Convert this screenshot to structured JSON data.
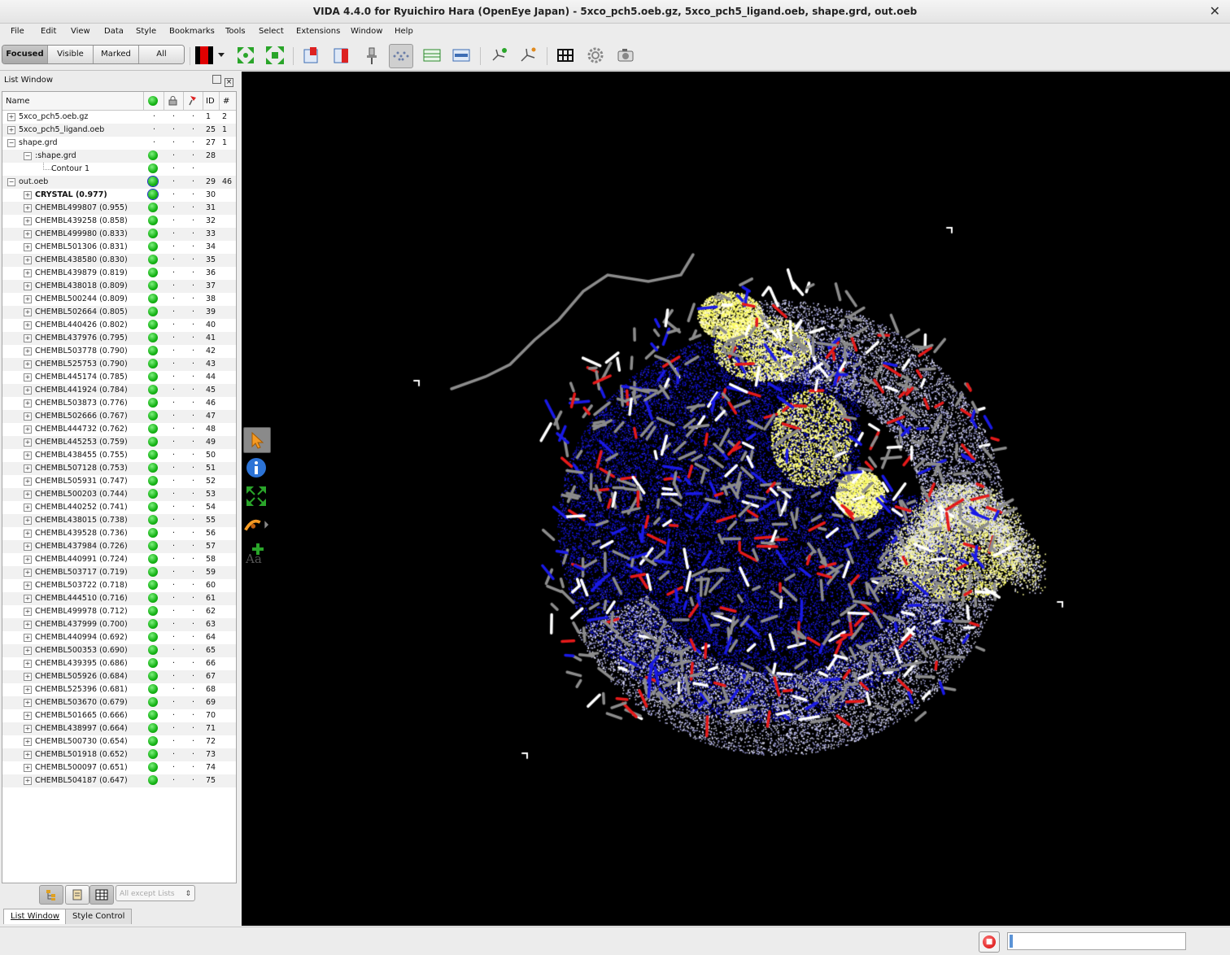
{
  "window": {
    "title": "VIDA 4.4.0 for Ryuichiro Hara (OpenEye Japan) - 5xco_pch5.oeb.gz, 5xco_pch5_ligand.oeb, shape.grd, out.oeb",
    "close_glyph": "✕"
  },
  "menu": [
    "File",
    "Edit",
    "View",
    "Data",
    "Style",
    "Bookmarks",
    "Tools",
    "Select",
    "Extensions",
    "Window",
    "Help"
  ],
  "toolbar": {
    "scope_buttons": [
      "Focused",
      "Visible",
      "Marked",
      "All"
    ],
    "active_scope": "Focused"
  },
  "list_window": {
    "title": "List Window",
    "columns": {
      "name": "Name",
      "id": "ID",
      "count": "#"
    },
    "rows": [
      {
        "name": "5xco_pch5.oeb.gz",
        "level": 0,
        "expander": "+",
        "visible": false,
        "id": "1",
        "count": "2"
      },
      {
        "name": "5xco_pch5_ligand.oeb",
        "level": 0,
        "expander": "+",
        "visible": false,
        "id": "25",
        "count": "1"
      },
      {
        "name": "shape.grd",
        "level": 0,
        "expander": "−",
        "visible": false,
        "id": "27",
        "count": "1"
      },
      {
        "name": ":shape.grd",
        "level": 1,
        "expander": "−",
        "visible": true,
        "id": "28",
        "count": ""
      },
      {
        "name": "Contour 1",
        "level": 2,
        "expander": "",
        "visible": true,
        "id": "",
        "count": ""
      },
      {
        "name": "out.oeb",
        "level": 0,
        "expander": "−",
        "visible": true,
        "selected": true,
        "id": "29",
        "count": "46"
      },
      {
        "name": "CRYSTAL (0.977)",
        "level": 1,
        "expander": "+",
        "visible": true,
        "selected": true,
        "bold": true,
        "id": "30",
        "count": ""
      },
      {
        "name": "CHEMBL499807 (0.955)",
        "level": 1,
        "expander": "+",
        "visible": true,
        "id": "31",
        "count": ""
      },
      {
        "name": "CHEMBL439258 (0.858)",
        "level": 1,
        "expander": "+",
        "visible": true,
        "id": "32",
        "count": ""
      },
      {
        "name": "CHEMBL499980 (0.833)",
        "level": 1,
        "expander": "+",
        "visible": true,
        "id": "33",
        "count": ""
      },
      {
        "name": "CHEMBL501306 (0.831)",
        "level": 1,
        "expander": "+",
        "visible": true,
        "id": "34",
        "count": ""
      },
      {
        "name": "CHEMBL438580 (0.830)",
        "level": 1,
        "expander": "+",
        "visible": true,
        "id": "35",
        "count": ""
      },
      {
        "name": "CHEMBL439879 (0.819)",
        "level": 1,
        "expander": "+",
        "visible": true,
        "id": "36",
        "count": ""
      },
      {
        "name": "CHEMBL438018 (0.809)",
        "level": 1,
        "expander": "+",
        "visible": true,
        "id": "37",
        "count": ""
      },
      {
        "name": "CHEMBL500244 (0.809)",
        "level": 1,
        "expander": "+",
        "visible": true,
        "id": "38",
        "count": ""
      },
      {
        "name": "CHEMBL502664 (0.805)",
        "level": 1,
        "expander": "+",
        "visible": true,
        "id": "39",
        "count": ""
      },
      {
        "name": "CHEMBL440426 (0.802)",
        "level": 1,
        "expander": "+",
        "visible": true,
        "id": "40",
        "count": ""
      },
      {
        "name": "CHEMBL437976 (0.795)",
        "level": 1,
        "expander": "+",
        "visible": true,
        "id": "41",
        "count": ""
      },
      {
        "name": "CHEMBL503778 (0.790)",
        "level": 1,
        "expander": "+",
        "visible": true,
        "id": "42",
        "count": ""
      },
      {
        "name": "CHEMBL525753 (0.790)",
        "level": 1,
        "expander": "+",
        "visible": true,
        "id": "43",
        "count": ""
      },
      {
        "name": "CHEMBL445174 (0.785)",
        "level": 1,
        "expander": "+",
        "visible": true,
        "id": "44",
        "count": ""
      },
      {
        "name": "CHEMBL441924 (0.784)",
        "level": 1,
        "expander": "+",
        "visible": true,
        "id": "45",
        "count": ""
      },
      {
        "name": "CHEMBL503873 (0.776)",
        "level": 1,
        "expander": "+",
        "visible": true,
        "id": "46",
        "count": ""
      },
      {
        "name": "CHEMBL502666 (0.767)",
        "level": 1,
        "expander": "+",
        "visible": true,
        "id": "47",
        "count": ""
      },
      {
        "name": "CHEMBL444732 (0.762)",
        "level": 1,
        "expander": "+",
        "visible": true,
        "id": "48",
        "count": ""
      },
      {
        "name": "CHEMBL445253 (0.759)",
        "level": 1,
        "expander": "+",
        "visible": true,
        "id": "49",
        "count": ""
      },
      {
        "name": "CHEMBL438455 (0.755)",
        "level": 1,
        "expander": "+",
        "visible": true,
        "id": "50",
        "count": ""
      },
      {
        "name": "CHEMBL507128 (0.753)",
        "level": 1,
        "expander": "+",
        "visible": true,
        "id": "51",
        "count": ""
      },
      {
        "name": "CHEMBL505931 (0.747)",
        "level": 1,
        "expander": "+",
        "visible": true,
        "id": "52",
        "count": ""
      },
      {
        "name": "CHEMBL500203 (0.744)",
        "level": 1,
        "expander": "+",
        "visible": true,
        "id": "53",
        "count": ""
      },
      {
        "name": "CHEMBL440252 (0.741)",
        "level": 1,
        "expander": "+",
        "visible": true,
        "id": "54",
        "count": ""
      },
      {
        "name": "CHEMBL438015 (0.738)",
        "level": 1,
        "expander": "+",
        "visible": true,
        "id": "55",
        "count": ""
      },
      {
        "name": "CHEMBL439528 (0.736)",
        "level": 1,
        "expander": "+",
        "visible": true,
        "id": "56",
        "count": ""
      },
      {
        "name": "CHEMBL437984 (0.726)",
        "level": 1,
        "expander": "+",
        "visible": true,
        "id": "57",
        "count": ""
      },
      {
        "name": "CHEMBL440991 (0.724)",
        "level": 1,
        "expander": "+",
        "visible": true,
        "id": "58",
        "count": ""
      },
      {
        "name": "CHEMBL503717 (0.719)",
        "level": 1,
        "expander": "+",
        "visible": true,
        "id": "59",
        "count": ""
      },
      {
        "name": "CHEMBL503722 (0.718)",
        "level": 1,
        "expander": "+",
        "visible": true,
        "id": "60",
        "count": ""
      },
      {
        "name": "CHEMBL444510 (0.716)",
        "level": 1,
        "expander": "+",
        "visible": true,
        "id": "61",
        "count": ""
      },
      {
        "name": "CHEMBL499978 (0.712)",
        "level": 1,
        "expander": "+",
        "visible": true,
        "id": "62",
        "count": ""
      },
      {
        "name": "CHEMBL437999 (0.700)",
        "level": 1,
        "expander": "+",
        "visible": true,
        "id": "63",
        "count": ""
      },
      {
        "name": "CHEMBL440994 (0.692)",
        "level": 1,
        "expander": "+",
        "visible": true,
        "id": "64",
        "count": ""
      },
      {
        "name": "CHEMBL500353 (0.690)",
        "level": 1,
        "expander": "+",
        "visible": true,
        "id": "65",
        "count": ""
      },
      {
        "name": "CHEMBL439395 (0.686)",
        "level": 1,
        "expander": "+",
        "visible": true,
        "id": "66",
        "count": ""
      },
      {
        "name": "CHEMBL505926 (0.684)",
        "level": 1,
        "expander": "+",
        "visible": true,
        "id": "67",
        "count": ""
      },
      {
        "name": "CHEMBL525396 (0.681)",
        "level": 1,
        "expander": "+",
        "visible": true,
        "id": "68",
        "count": ""
      },
      {
        "name": "CHEMBL503670 (0.679)",
        "level": 1,
        "expander": "+",
        "visible": true,
        "id": "69",
        "count": ""
      },
      {
        "name": "CHEMBL501665 (0.666)",
        "level": 1,
        "expander": "+",
        "visible": true,
        "id": "70",
        "count": ""
      },
      {
        "name": "CHEMBL438997 (0.664)",
        "level": 1,
        "expander": "+",
        "visible": true,
        "id": "71",
        "count": ""
      },
      {
        "name": "CHEMBL500730 (0.654)",
        "level": 1,
        "expander": "+",
        "visible": true,
        "id": "72",
        "count": ""
      },
      {
        "name": "CHEMBL501918 (0.652)",
        "level": 1,
        "expander": "+",
        "visible": true,
        "id": "73",
        "count": ""
      },
      {
        "name": "CHEMBL500097 (0.651)",
        "level": 1,
        "expander": "+",
        "visible": true,
        "id": "74",
        "count": ""
      },
      {
        "name": "CHEMBL504187 (0.647)",
        "level": 1,
        "expander": "+",
        "visible": true,
        "id": "75",
        "count": ""
      }
    ],
    "filter_combo": "All except Lists",
    "tabs": [
      "List Window",
      "Style Control"
    ],
    "active_tab": "List Window"
  },
  "colors": {
    "viewer_background": "#000000",
    "carbon": "#8c8c8c",
    "nitrogen": "#1a1ae6",
    "oxygen": "#e61a1a",
    "hydrogen": "#ffffff",
    "shape_positive": "#ffff66",
    "shape_negative": "#1010d0",
    "visible_dot": "#13b213"
  },
  "viewer_tools": [
    "pointer-icon",
    "info-icon",
    "center-icon",
    "rotate-icon",
    "add-label-icon"
  ]
}
